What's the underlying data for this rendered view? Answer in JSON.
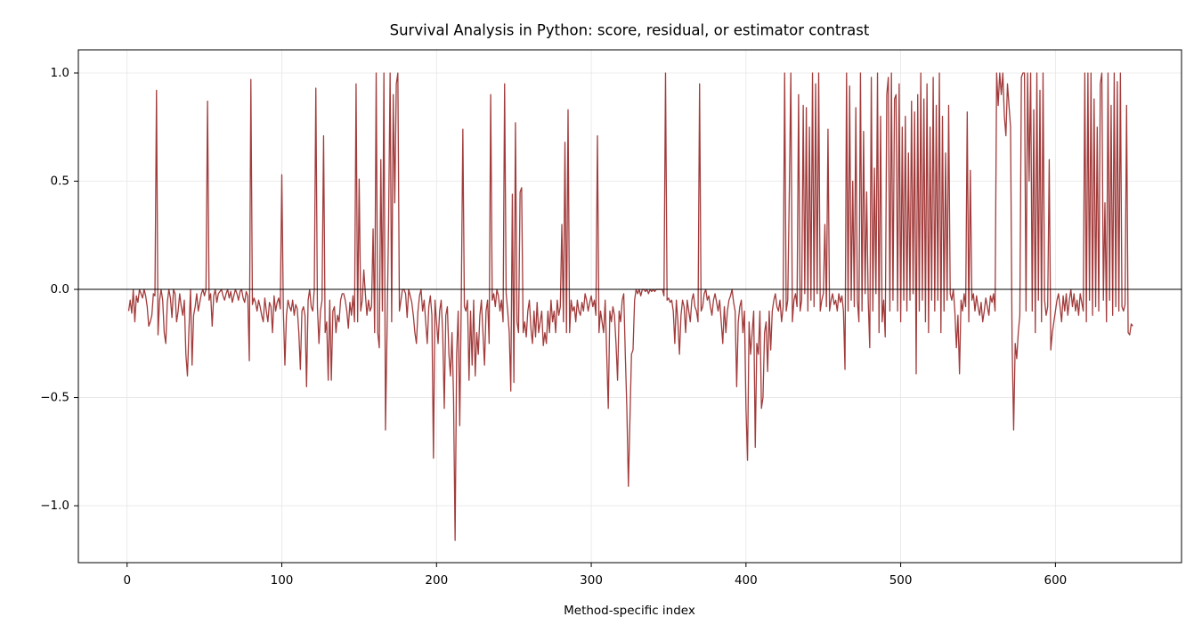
{
  "chart_data": {
    "type": "line",
    "title": "Survival Analysis in Python: score, residual, or estimator contrast",
    "xlabel": "Method-specific index",
    "color": "#a23b3b",
    "grid": true,
    "hline": 0,
    "xlim": [
      -31.5,
      681.5
    ],
    "ylim": [
      -1.263,
      1.107
    ],
    "xticks": [
      0,
      100,
      200,
      300,
      400,
      500,
      600
    ],
    "yticks": [
      {
        "value": -1,
        "label": "−1.0"
      },
      {
        "value": -0.5,
        "label": "−0.5"
      },
      {
        "value": 0,
        "label": "0.0"
      },
      {
        "value": 0.5,
        "label": "0.5"
      },
      {
        "value": 1,
        "label": "1.0"
      }
    ],
    "x": [
      1,
      2,
      3,
      4,
      5,
      6,
      7,
      8,
      9,
      10,
      11,
      12,
      13,
      14,
      15,
      16,
      17,
      18,
      19,
      20,
      21,
      22,
      23,
      24,
      25,
      26,
      27,
      28,
      29,
      30,
      31,
      32,
      33,
      34,
      35,
      36,
      37,
      38,
      39,
      40,
      41,
      42,
      43,
      44,
      45,
      46,
      47,
      48,
      49,
      50,
      51,
      52,
      53,
      54,
      55,
      56,
      57,
      58,
      59,
      60,
      61,
      62,
      63,
      64,
      65,
      66,
      67,
      68,
      69,
      70,
      71,
      72,
      73,
      74,
      75,
      76,
      77,
      78,
      79,
      80,
      81,
      82,
      83,
      84,
      85,
      86,
      87,
      88,
      89,
      90,
      91,
      92,
      93,
      94,
      95,
      96,
      97,
      98,
      99,
      100,
      101,
      102,
      103,
      104,
      105,
      106,
      107,
      108,
      109,
      110,
      111,
      112,
      113,
      114,
      115,
      116,
      117,
      118,
      119,
      120,
      121,
      122,
      123,
      124,
      125,
      126,
      127,
      128,
      129,
      130,
      131,
      132,
      133,
      134,
      135,
      136,
      137,
      138,
      139,
      140,
      141,
      142,
      143,
      144,
      145,
      146,
      147,
      148,
      149,
      150,
      151,
      152,
      153,
      154,
      155,
      156,
      157,
      158,
      159,
      160,
      161,
      162,
      163,
      164,
      165,
      166,
      167,
      168,
      169,
      170,
      171,
      172,
      173,
      174,
      175,
      176,
      177,
      178,
      179,
      180,
      181,
      182,
      183,
      184,
      185,
      186,
      187,
      188,
      189,
      190,
      191,
      192,
      193,
      194,
      195,
      196,
      197,
      198,
      199,
      200,
      201,
      202,
      203,
      204,
      205,
      206,
      207,
      208,
      209,
      210,
      211,
      212,
      213,
      214,
      215,
      216,
      217,
      218,
      219,
      220,
      221,
      222,
      223,
      224,
      225,
      226,
      227,
      228,
      229,
      230,
      231,
      232,
      233,
      234,
      235,
      236,
      237,
      238,
      239,
      240,
      241,
      242,
      243,
      244,
      245,
      246,
      247,
      248,
      249,
      250,
      251,
      252,
      253,
      254,
      255,
      256,
      257,
      258,
      259,
      260,
      261,
      262,
      263,
      264,
      265,
      266,
      267,
      268,
      269,
      270,
      271,
      272,
      273,
      274,
      275,
      276,
      277,
      278,
      279,
      280,
      281,
      282,
      283,
      284,
      285,
      286,
      287,
      288,
      289,
      290,
      291,
      292,
      293,
      294,
      295,
      296,
      297,
      298,
      299,
      300,
      301,
      302,
      303,
      304,
      305,
      306,
      307,
      308,
      309,
      310,
      311,
      312,
      313,
      314,
      315,
      316,
      317,
      318,
      319,
      320,
      321,
      322,
      323,
      324,
      325,
      326,
      327,
      328,
      329,
      330,
      331,
      332,
      333,
      334,
      335,
      336,
      337,
      338,
      339,
      340,
      341,
      342,
      343,
      344,
      345,
      346,
      347,
      348,
      349,
      350,
      351,
      352,
      353,
      354,
      355,
      356,
      357,
      358,
      359,
      360,
      361,
      362,
      363,
      364,
      365,
      366,
      367,
      368,
      369,
      370,
      371,
      372,
      373,
      374,
      375,
      376,
      377,
      378,
      379,
      380,
      381,
      382,
      383,
      384,
      385,
      386,
      387,
      388,
      389,
      390,
      391,
      392,
      393,
      394,
      395,
      396,
      397,
      398,
      399,
      400,
      401,
      402,
      403,
      404,
      405,
      406,
      407,
      408,
      409,
      410,
      411,
      412,
      413,
      414,
      415,
      416,
      417,
      418,
      419,
      420,
      421,
      422,
      423,
      424,
      425,
      426,
      427,
      428,
      429,
      430,
      431,
      432,
      433,
      434,
      435,
      436,
      437,
      438,
      439,
      440,
      441,
      442,
      443,
      444,
      445,
      446,
      447,
      448,
      449,
      450,
      451,
      452,
      453,
      454,
      455,
      456,
      457,
      458,
      459,
      460,
      461,
      462,
      463,
      464,
      465,
      466,
      467,
      468,
      469,
      470,
      471,
      472,
      473,
      474,
      475,
      476,
      477,
      478,
      479,
      480,
      481,
      482,
      483,
      484,
      485,
      486,
      487,
      488,
      489,
      490,
      491,
      492,
      493,
      494,
      495,
      496,
      497,
      498,
      499,
      500,
      501,
      502,
      503,
      504,
      505,
      506,
      507,
      508,
      509,
      510,
      511,
      512,
      513,
      514,
      515,
      516,
      517,
      518,
      519,
      520,
      521,
      522,
      523,
      524,
      525,
      526,
      527,
      528,
      529,
      530,
      531,
      532,
      533,
      534,
      535,
      536,
      537,
      538,
      539,
      540,
      541,
      542,
      543,
      544,
      545,
      546,
      547,
      548,
      549,
      550,
      551,
      552,
      553,
      554,
      555,
      556,
      557,
      558,
      559,
      560,
      561,
      562,
      563,
      564,
      565,
      566,
      567,
      568,
      569,
      570,
      571,
      572,
      573,
      574,
      575,
      576,
      577,
      578,
      579,
      580,
      581,
      582,
      583,
      584,
      585,
      586,
      587,
      588,
      589,
      590,
      591,
      592,
      593,
      594,
      595,
      596,
      597,
      598,
      599,
      600,
      601,
      602,
      603,
      604,
      605,
      606,
      607,
      608,
      609,
      610,
      611,
      612,
      613,
      614,
      615,
      616,
      617,
      618,
      619,
      620,
      621,
      622,
      623,
      624,
      625,
      626,
      627,
      628,
      629,
      630,
      631,
      632,
      633,
      634,
      635,
      636,
      637,
      638,
      639,
      640,
      641,
      642,
      643,
      644,
      645,
      646,
      647,
      648,
      649,
      650
    ],
    "values": [
      -0.1,
      -0.05,
      -0.11,
      0,
      -0.15,
      -0.03,
      -0.06,
      0,
      -0.02,
      -0.04,
      0,
      -0.03,
      -0.08,
      -0.17,
      -0.15,
      -0.12,
      -0.02,
      -0.03,
      0.92,
      -0.21,
      -0.05,
      0,
      -0.05,
      -0.2,
      -0.25,
      -0.06,
      0,
      -0.04,
      -0.13,
      0,
      -0.02,
      -0.15,
      -0.1,
      -0.02,
      -0.08,
      -0.12,
      -0.05,
      -0.3,
      -0.4,
      -0.18,
      0,
      -0.35,
      -0.12,
      -0.08,
      -0.02,
      -0.1,
      -0.06,
      -0.02,
      0,
      -0.03,
      0,
      0.87,
      -0.05,
      -0.02,
      -0.17,
      -0.03,
      0,
      -0.06,
      -0.02,
      -0.01,
      0,
      -0.03,
      -0.05,
      -0.02,
      0,
      -0.04,
      -0.01,
      -0.06,
      -0.03,
      0,
      -0.02,
      -0.05,
      -0.01,
      0,
      -0.04,
      -0.06,
      -0.01,
      -0.03,
      -0.33,
      0.97,
      -0.07,
      -0.04,
      -0.06,
      -0.1,
      -0.05,
      -0.08,
      -0.12,
      -0.15,
      -0.04,
      -0.1,
      -0.15,
      -0.06,
      -0.08,
      -0.2,
      -0.03,
      -0.1,
      -0.06,
      -0.04,
      -0.09,
      0.53,
      -0.1,
      -0.35,
      -0.12,
      -0.05,
      -0.08,
      -0.1,
      -0.05,
      -0.12,
      -0.07,
      -0.09,
      -0.2,
      -0.37,
      -0.1,
      -0.08,
      -0.12,
      -0.45,
      -0.05,
      0,
      -0.08,
      -0.1,
      0,
      0.93,
      -0.08,
      -0.25,
      -0.1,
      -0.05,
      0.71,
      -0.2,
      -0.15,
      -0.42,
      -0.05,
      -0.42,
      -0.1,
      -0.08,
      -0.2,
      -0.12,
      -0.15,
      -0.05,
      -0.02,
      -0.02,
      -0.05,
      -0.1,
      -0.18,
      -0.06,
      -0.12,
      -0.03,
      -0.15,
      0.95,
      -0.15,
      0.51,
      -0.1,
      -0.05,
      0.09,
      -0.02,
      -0.12,
      -0.05,
      -0.1,
      -0.08,
      0.28,
      -0.2,
      1.0,
      -0.2,
      -0.27,
      0.6,
      -0.1,
      1.0,
      -0.65,
      -0.2,
      0.3,
      1.0,
      -0.15,
      0.9,
      0.4,
      0.95,
      1.0,
      -0.1,
      -0.05,
      0,
      0,
      -0.02,
      -0.13,
      0,
      -0.03,
      -0.06,
      -0.12,
      -0.2,
      -0.25,
      -0.1,
      -0.03,
      0,
      -0.1,
      -0.05,
      -0.15,
      -0.25,
      -0.08,
      -0.03,
      -0.12,
      -0.78,
      -0.05,
      -0.15,
      -0.25,
      -0.1,
      -0.05,
      -0.2,
      -0.55,
      -0.12,
      -0.08,
      -0.3,
      -0.4,
      -0.2,
      -0.5,
      -1.16,
      -0.3,
      -0.1,
      -0.63,
      -0.05,
      0.74,
      -0.08,
      -0.1,
      -0.05,
      -0.42,
      -0.1,
      -0.35,
      -0.05,
      -0.4,
      -0.2,
      -0.3,
      -0.12,
      -0.05,
      -0.2,
      -0.35,
      -0.1,
      -0.05,
      -0.25,
      0.9,
      -0.05,
      -0.02,
      -0.08,
      0,
      -0.03,
      -0.1,
      -0.05,
      -0.15,
      0.95,
      -0.02,
      -0.1,
      -0.2,
      -0.47,
      0.44,
      -0.43,
      0.77,
      -0.15,
      -0.2,
      0.45,
      0.47,
      -0.2,
      -0.15,
      -0.22,
      -0.1,
      -0.05,
      -0.18,
      -0.25,
      -0.1,
      -0.22,
      -0.06,
      -0.2,
      -0.15,
      -0.1,
      -0.26,
      -0.2,
      -0.25,
      -0.1,
      -0.2,
      -0.05,
      -0.15,
      -0.1,
      -0.2,
      -0.05,
      -0.12,
      -0.08,
      0.3,
      -0.15,
      0.68,
      -0.2,
      0.83,
      -0.2,
      -0.05,
      -0.1,
      -0.08,
      -0.15,
      -0.05,
      -0.1,
      -0.12,
      -0.06,
      -0.1,
      -0.02,
      -0.05,
      -0.1,
      -0.06,
      -0.03,
      -0.08,
      -0.05,
      -0.12,
      0.71,
      -0.2,
      -0.1,
      -0.15,
      -0.2,
      -0.05,
      -0.3,
      -0.55,
      -0.1,
      -0.15,
      -0.08,
      -0.12,
      -0.25,
      -0.42,
      -0.1,
      -0.15,
      -0.05,
      -0.02,
      -0.3,
      -0.55,
      -0.91,
      -0.6,
      -0.3,
      -0.28,
      -0.05,
      0,
      -0.02,
      0,
      -0.03,
      0,
      0,
      -0.01,
      0,
      -0.02,
      0,
      -0.01,
      0,
      -0.01,
      0,
      0,
      0,
      0,
      0,
      -0.03,
      1.0,
      -0.05,
      -0.04,
      -0.06,
      -0.05,
      -0.1,
      -0.25,
      -0.05,
      -0.15,
      -0.3,
      -0.12,
      -0.05,
      -0.08,
      -0.2,
      -0.05,
      -0.1,
      -0.15,
      -0.05,
      -0.02,
      -0.08,
      -0.1,
      -0.15,
      0.95,
      -0.1,
      -0.08,
      -0.02,
      0,
      -0.05,
      -0.03,
      -0.08,
      -0.12,
      -0.05,
      -0.02,
      -0.06,
      -0.1,
      -0.05,
      -0.15,
      -0.25,
      -0.08,
      -0.2,
      -0.1,
      -0.05,
      -0.03,
      0,
      -0.06,
      -0.1,
      -0.45,
      -0.15,
      -0.08,
      -0.05,
      -0.2,
      -0.1,
      -0.55,
      -0.79,
      -0.15,
      -0.3,
      -0.2,
      -0.1,
      -0.73,
      -0.25,
      -0.3,
      -0.1,
      -0.55,
      -0.5,
      -0.2,
      -0.15,
      -0.38,
      -0.1,
      -0.28,
      -0.1,
      -0.05,
      -0.02,
      -0.08,
      -0.1,
      -0.05,
      -0.15,
      -0.08,
      1.0,
      -0.1,
      -0.05,
      0.45,
      1.0,
      -0.15,
      -0.05,
      -0.02,
      -0.08,
      0.9,
      -0.1,
      -0.05,
      0.85,
      -0.02,
      0.84,
      -0.1,
      0.75,
      -0.05,
      1.0,
      -0.08,
      0.95,
      -0.02,
      1.0,
      -0.1,
      -0.05,
      -0.02,
      0.3,
      -0.08,
      0.74,
      -0.1,
      -0.05,
      -0.02,
      -0.07,
      -0.05,
      -0.1,
      -0.02,
      -0.06,
      -0.03,
      -0.1,
      -0.37,
      1.0,
      -0.1,
      0.94,
      -0.05,
      0.5,
      -0.08,
      0.84,
      -0.05,
      -0.15,
      1.0,
      -0.1,
      0.73,
      -0.02,
      0.45,
      -0.05,
      -0.27,
      0.98,
      -0.1,
      0.56,
      -0.02,
      1.0,
      -0.2,
      0.8,
      -0.15,
      -0.05,
      -0.22,
      0.9,
      0.98,
      -0.1,
      1.0,
      -0.05,
      0.88,
      0.9,
      -0.1,
      0.95,
      -0.15,
      0.75,
      -0.05,
      0.8,
      -0.1,
      0.63,
      -0.05,
      0.87,
      -0.02,
      0.82,
      -0.39,
      0.9,
      -0.1,
      1.0,
      -0.05,
      0.88,
      -0.15,
      0.95,
      -0.2,
      0.75,
      -0.05,
      0.98,
      -0.1,
      0.85,
      -0.05,
      1.0,
      -0.2,
      0.8,
      -0.1,
      0.63,
      -0.05,
      0.85,
      -0.02,
      -0.05,
      0,
      -0.1,
      -0.27,
      -0.12,
      -0.39,
      -0.05,
      -0.1,
      -0.02,
      -0.08,
      0.82,
      -0.15,
      0.55,
      -0.05,
      -0.02,
      -0.1,
      -0.03,
      -0.08,
      -0.12,
      -0.06,
      -0.15,
      -0.1,
      -0.04,
      -0.08,
      -0.12,
      -0.03,
      -0.06,
      -0.02,
      -0.1,
      1.0,
      0.85,
      1.0,
      0.9,
      1.0,
      0.8,
      0.71,
      0.95,
      0.85,
      0.75,
      -0.25,
      -0.65,
      -0.25,
      -0.32,
      -0.2,
      -0.12,
      0.98,
      1.0,
      1.0,
      -0.1,
      1.0,
      0.5,
      1.0,
      -0.1,
      0.83,
      -0.2,
      1.0,
      -0.05,
      0.92,
      -0.15,
      1.0,
      -0.05,
      -0.12,
      -0.08,
      0.6,
      -0.28,
      -0.2,
      -0.15,
      -0.1,
      -0.05,
      -0.02,
      -0.08,
      -0.15,
      -0.03,
      -0.1,
      -0.02,
      -0.12,
      -0.05,
      0,
      -0.08,
      -0.02,
      -0.1,
      -0.05,
      -0.12,
      -0.02,
      -0.06,
      -0.1,
      1.0,
      -0.15,
      1.0,
      -0.05,
      1.0,
      -0.12,
      0.88,
      -0.08,
      0.75,
      -0.1,
      0.95,
      1.0,
      -0.05,
      0.4,
      -0.15,
      1.0,
      -0.05,
      0.85,
      -0.12,
      1.0,
      -0.08,
      0.96,
      -0.1,
      1.0,
      -0.08,
      -0.1,
      -0.07,
      0.85,
      -0.2,
      -0.21,
      -0.16,
      -0.17
    ]
  }
}
